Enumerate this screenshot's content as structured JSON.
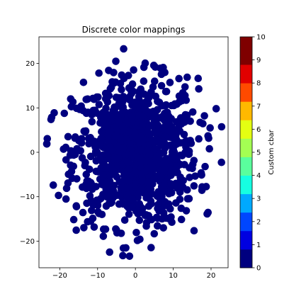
{
  "chart_data": {
    "type": "scatter",
    "title": "Discrete color mappings",
    "xlabel": "",
    "ylabel": "",
    "xlim": [
      -25.5,
      24.5
    ],
    "ylim": [
      -26,
      26
    ],
    "xticks": [
      -20,
      -10,
      0,
      10,
      20
    ],
    "yticks": [
      -20,
      -10,
      0,
      10,
      20
    ],
    "grid": false,
    "marker_color": "#00007f",
    "n_points_estimate": 1000,
    "spread_description": "points cluster around origin, roughly x in [-24,23], y in [-24,24]",
    "colorbar": {
      "label": "Custom cbar",
      "ticks": [
        0,
        1,
        2,
        3,
        4,
        5,
        6,
        7,
        8,
        9,
        10
      ],
      "colors": [
        "#00007f",
        "#0000e1",
        "#0046ff",
        "#00a9ff",
        "#16ffe1",
        "#5aff9d",
        "#a4ff53",
        "#e4ff12",
        "#ffb900",
        "#ff4a00",
        "#e10000",
        "#7f0000"
      ],
      "boundaries": [
        0,
        0.8,
        1.6,
        2.4,
        3.2,
        4.0,
        4.8,
        5.6,
        6.4,
        7.2,
        8.0,
        8.8,
        10
      ]
    }
  }
}
